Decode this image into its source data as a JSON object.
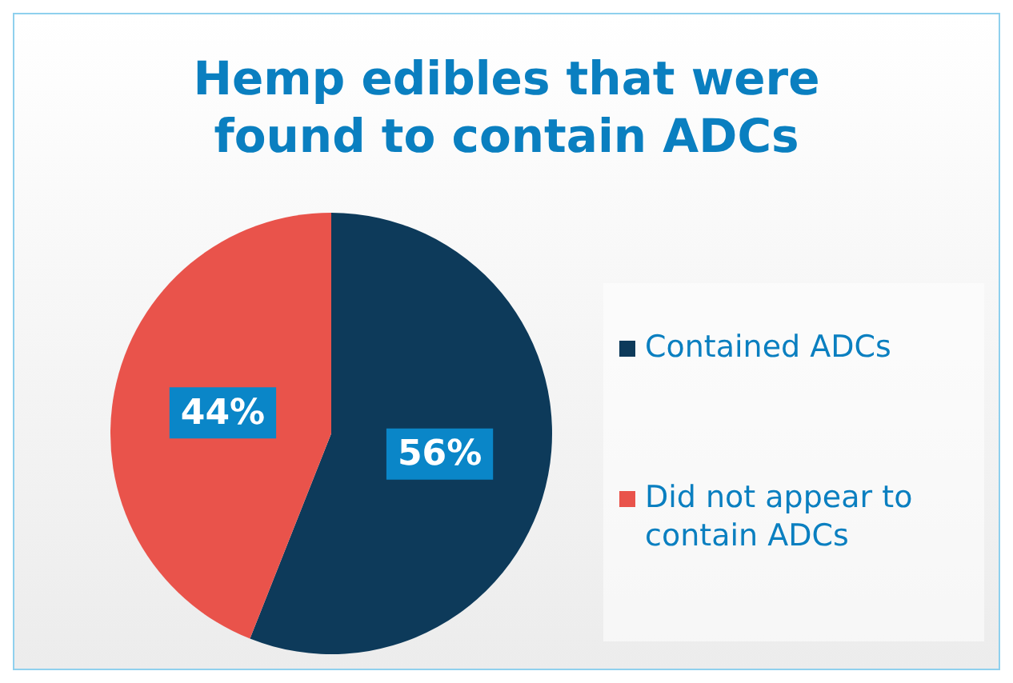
{
  "chart_data": {
    "type": "pie",
    "title": "Hemp edibles that were found to contain ADCs",
    "categories": [
      "Contained ADCs",
      "Did not appear to contain ADCs"
    ],
    "values": [
      56,
      44
    ],
    "colors": [
      "#0d3a5a",
      "#e9534b"
    ],
    "value_labels": [
      "56%",
      "44%"
    ],
    "legend": "right"
  }
}
